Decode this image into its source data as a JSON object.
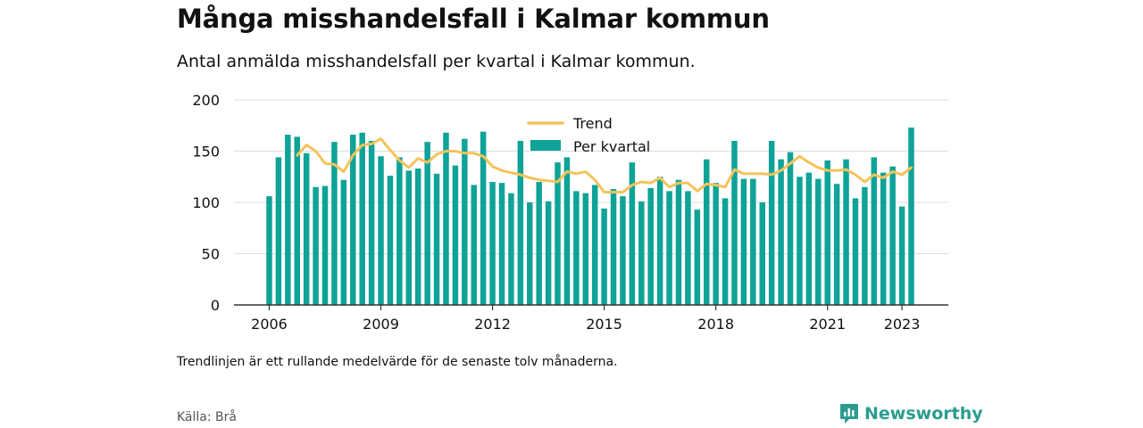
{
  "header": {
    "title": "Många misshandelsfall i Kalmar kommun",
    "subtitle": "Antal anmälda misshandelsfall per kvartal i Kalmar kommun."
  },
  "footer": {
    "note": "Trendlinjen är ett rullande medelvärde för de senaste tolv månaderna.",
    "source": "Källa: Brå",
    "brand": "Newsworthy"
  },
  "colors": {
    "bar": "#0fa398",
    "trend": "#f5c35a",
    "grid": "#dddddd",
    "axis": "#333333",
    "brand": "#2a9d8f"
  },
  "chart_data": {
    "type": "bar",
    "x_start": "2006 Q1",
    "ylim": [
      0,
      200
    ],
    "yticks": [
      0,
      50,
      100,
      150,
      200
    ],
    "xticks": [
      "2006",
      "2009",
      "2012",
      "2015",
      "2018",
      "2021",
      "2023"
    ],
    "legend_position": "top-center",
    "grid": true,
    "series": [
      {
        "name": "Per kvartal",
        "type": "bar",
        "values": [
          106,
          144,
          166,
          164,
          148,
          115,
          116,
          159,
          122,
          166,
          168,
          160,
          145,
          126,
          144,
          131,
          133,
          159,
          128,
          168,
          136,
          162,
          117,
          169,
          120,
          119,
          109,
          160,
          100,
          120,
          101,
          139,
          144,
          111,
          109,
          117,
          94,
          113,
          106,
          139,
          101,
          114,
          125,
          111,
          122,
          111,
          93,
          142,
          119,
          104,
          160,
          123,
          123,
          100,
          160,
          142,
          149,
          125,
          129,
          123,
          141,
          118,
          142,
          104,
          115,
          144,
          129,
          135,
          96,
          173
        ]
      },
      {
        "name": "Trend",
        "type": "line",
        "values": [
          null,
          null,
          null,
          146,
          156,
          150,
          138,
          137,
          130,
          146,
          156,
          157,
          162,
          151,
          141,
          134,
          143,
          139,
          147,
          150,
          150,
          148,
          148,
          145,
          135,
          131,
          129,
          127,
          124,
          122,
          121,
          120,
          130,
          128,
          130,
          122,
          110,
          110,
          110,
          117,
          120,
          119,
          124,
          115,
          119,
          119,
          111,
          118,
          117,
          115,
          132,
          128,
          128,
          128,
          127,
          131,
          138,
          145,
          139,
          134,
          131,
          131,
          132,
          127,
          120,
          127,
          124,
          130,
          127,
          134
        ]
      }
    ]
  }
}
